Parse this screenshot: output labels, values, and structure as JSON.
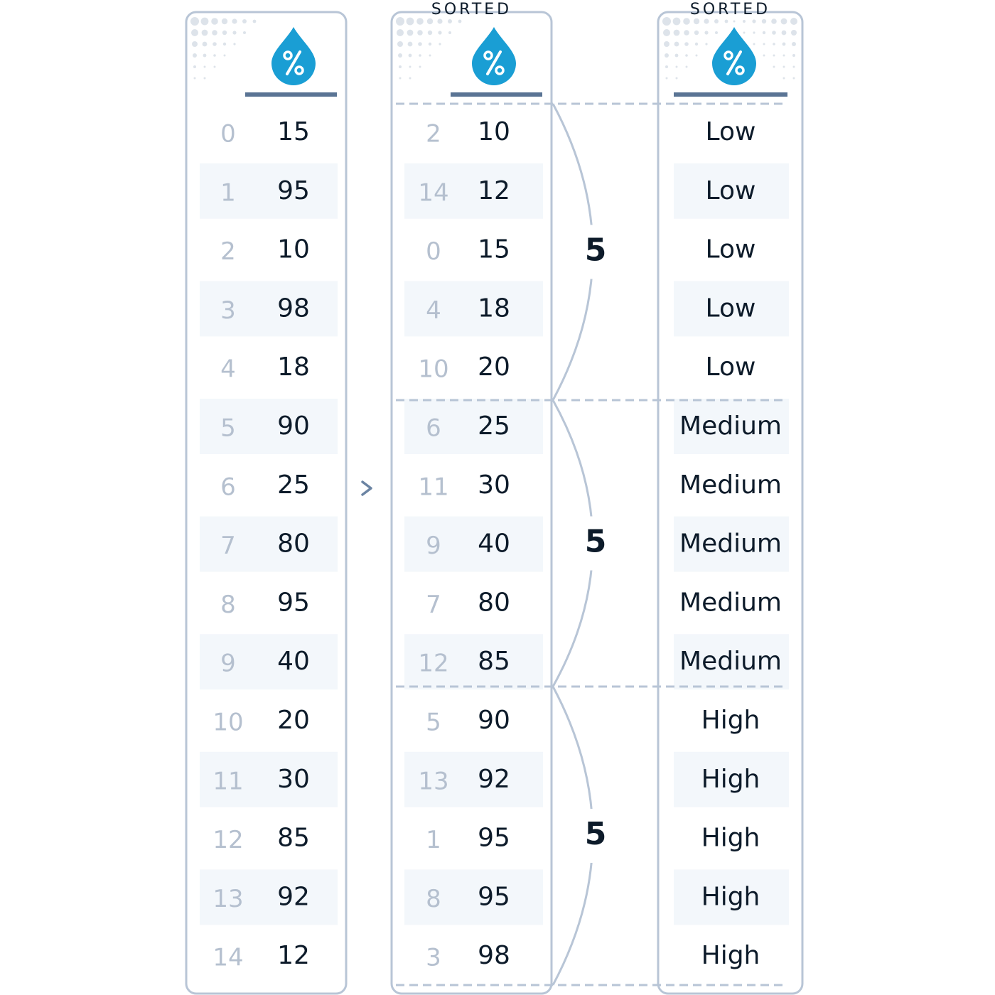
{
  "columns": [
    {
      "rows": [
        {
          "index": 0,
          "value": 15
        },
        {
          "index": 1,
          "value": 95
        },
        {
          "index": 2,
          "value": 10
        },
        {
          "index": 3,
          "value": 98
        },
        {
          "index": 4,
          "value": 18
        },
        {
          "index": 5,
          "value": 90
        },
        {
          "index": 6,
          "value": 25
        },
        {
          "index": 7,
          "value": 80
        },
        {
          "index": 8,
          "value": 95
        },
        {
          "index": 9,
          "value": 40
        },
        {
          "index": 10,
          "value": 20
        },
        {
          "index": 11,
          "value": 30
        },
        {
          "index": 12,
          "value": 85
        },
        {
          "index": 13,
          "value": 92
        },
        {
          "index": 14,
          "value": 12
        }
      ]
    },
    {
      "header": "SORTED",
      "rows": [
        {
          "index": 2,
          "value": 10
        },
        {
          "index": 14,
          "value": 12
        },
        {
          "index": 0,
          "value": 15
        },
        {
          "index": 4,
          "value": 18
        },
        {
          "index": 10,
          "value": 20
        },
        {
          "index": 6,
          "value": 25
        },
        {
          "index": 11,
          "value": 30
        },
        {
          "index": 9,
          "value": 40
        },
        {
          "index": 7,
          "value": 80
        },
        {
          "index": 12,
          "value": 85
        },
        {
          "index": 5,
          "value": 90
        },
        {
          "index": 13,
          "value": 92
        },
        {
          "index": 1,
          "value": 95
        },
        {
          "index": 8,
          "value": 95
        },
        {
          "index": 3,
          "value": 98
        }
      ]
    },
    {
      "header": "SORTED",
      "rows": [
        "Low",
        "Low",
        "Low",
        "Low",
        "Low",
        "Medium",
        "Medium",
        "Medium",
        "Medium",
        "Medium",
        "High",
        "High",
        "High",
        "High",
        "High"
      ]
    }
  ],
  "groups": [
    {
      "count": 5
    },
    {
      "count": 5
    },
    {
      "count": 5
    }
  ]
}
